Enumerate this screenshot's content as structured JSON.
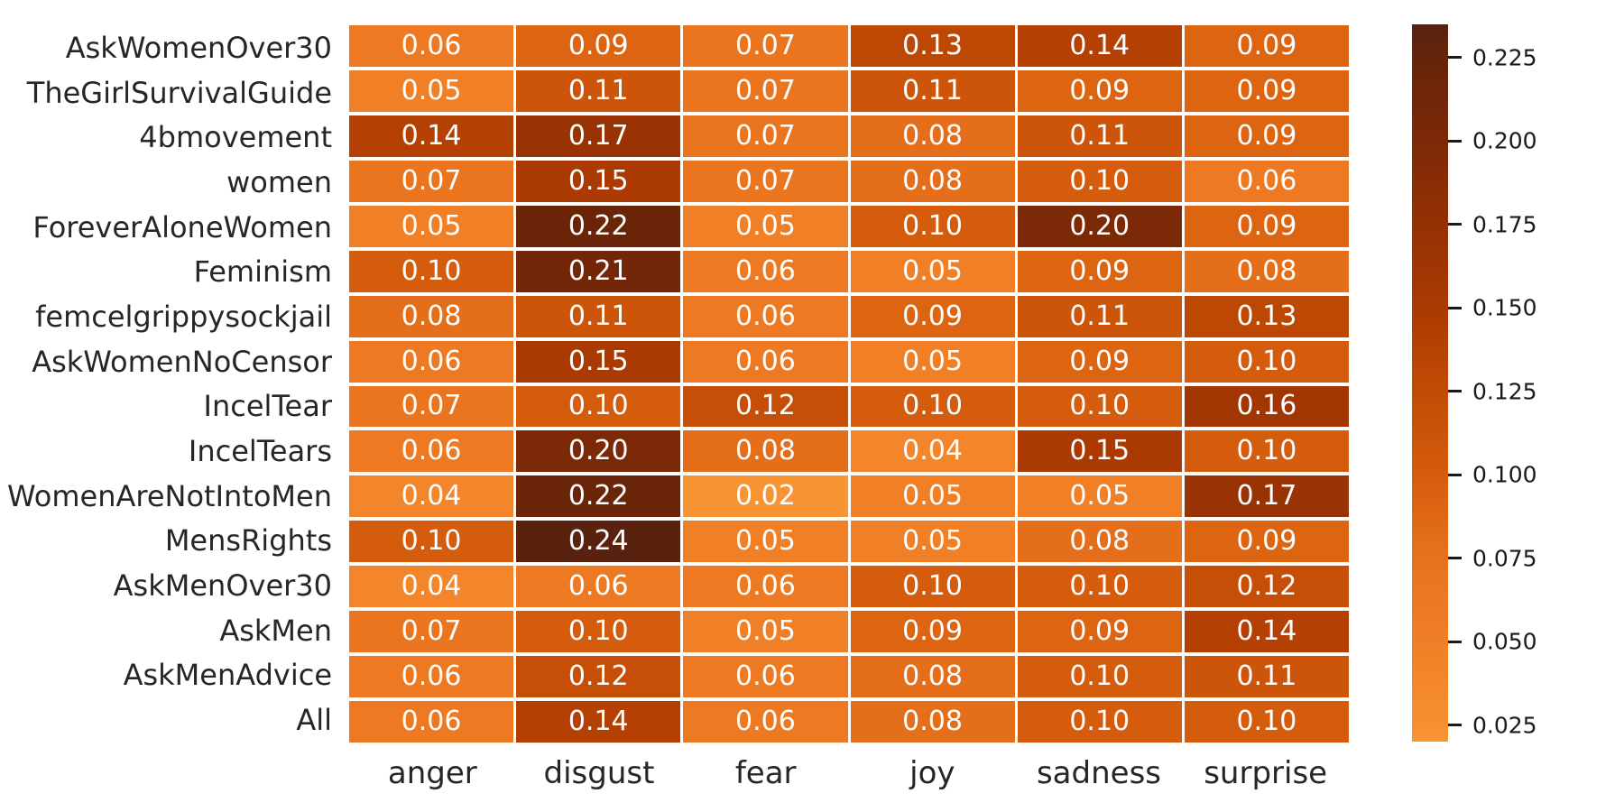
{
  "figure": {
    "background_color": "#ffffff",
    "label_color": "#262626",
    "annotation_color": "#ffffff",
    "grid_line_color": "#ffffff"
  },
  "chart_data": {
    "type": "heatmap",
    "title": "",
    "xlabel": "",
    "ylabel": "",
    "columns": [
      "anger",
      "disgust",
      "fear",
      "joy",
      "sadness",
      "surprise"
    ],
    "rows": [
      "AskWomenOver30",
      "TheGirlSurvivalGuide",
      "4bmovement",
      "women",
      "ForeverAloneWomen",
      "Feminism",
      "femcelgrippysockjail",
      "AskWomenNoCensor",
      "IncelTear",
      "IncelTears",
      "WomenAreNotIntoMen",
      "MensRights",
      "AskMenOver30",
      "AskMen",
      "AskMenAdvice",
      "All"
    ],
    "values": [
      [
        0.06,
        0.09,
        0.07,
        0.13,
        0.14,
        0.09
      ],
      [
        0.05,
        0.11,
        0.07,
        0.11,
        0.09,
        0.09
      ],
      [
        0.14,
        0.17,
        0.07,
        0.08,
        0.11,
        0.09
      ],
      [
        0.07,
        0.15,
        0.07,
        0.08,
        0.1,
        0.06
      ],
      [
        0.05,
        0.22,
        0.05,
        0.1,
        0.2,
        0.09
      ],
      [
        0.1,
        0.21,
        0.06,
        0.05,
        0.09,
        0.08
      ],
      [
        0.08,
        0.11,
        0.06,
        0.09,
        0.11,
        0.13
      ],
      [
        0.06,
        0.15,
        0.06,
        0.05,
        0.09,
        0.1
      ],
      [
        0.07,
        0.1,
        0.12,
        0.1,
        0.1,
        0.16
      ],
      [
        0.06,
        0.2,
        0.08,
        0.04,
        0.15,
        0.1
      ],
      [
        0.04,
        0.22,
        0.02,
        0.05,
        0.05,
        0.17
      ],
      [
        0.1,
        0.24,
        0.05,
        0.05,
        0.08,
        0.09
      ],
      [
        0.04,
        0.06,
        0.06,
        0.1,
        0.1,
        0.12
      ],
      [
        0.07,
        0.1,
        0.05,
        0.09,
        0.09,
        0.14
      ],
      [
        0.06,
        0.12,
        0.06,
        0.08,
        0.1,
        0.11
      ],
      [
        0.06,
        0.14,
        0.06,
        0.08,
        0.1,
        0.1
      ]
    ],
    "annotation_decimals": 2,
    "legend_position": "right",
    "colorbar": {
      "vmin": 0.02,
      "vmax": 0.235,
      "ticks": [
        0.225,
        0.2,
        0.175,
        0.15,
        0.125,
        0.1,
        0.075,
        0.05,
        0.025
      ],
      "tick_labels": [
        "0.225",
        "0.200",
        "0.175",
        "0.150",
        "0.125",
        "0.100",
        "0.075",
        "0.050",
        "0.025"
      ],
      "colormap_stops": [
        {
          "value": 0.02,
          "color": "#f89434"
        },
        {
          "value": 0.025,
          "color": "#f78e31"
        },
        {
          "value": 0.05,
          "color": "#f07f26"
        },
        {
          "value": 0.075,
          "color": "#e8721c"
        },
        {
          "value": 0.1,
          "color": "#d55c0c"
        },
        {
          "value": 0.125,
          "color": "#c24b04"
        },
        {
          "value": 0.15,
          "color": "#aa3a02"
        },
        {
          "value": 0.175,
          "color": "#953103"
        },
        {
          "value": 0.2,
          "color": "#7c2907"
        },
        {
          "value": 0.225,
          "color": "#662409"
        },
        {
          "value": 0.235,
          "color": "#58220f"
        }
      ]
    }
  }
}
